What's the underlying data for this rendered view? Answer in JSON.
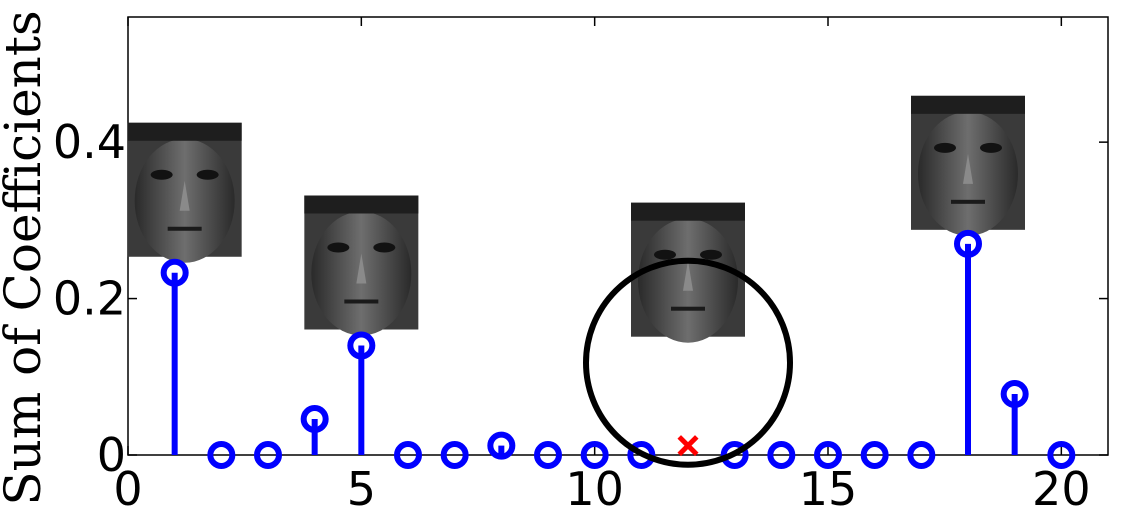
{
  "chart_data": {
    "type": "stem",
    "ylabel": "Sum of Coefficients",
    "xlim": [
      0,
      21
    ],
    "ylim": [
      0,
      0.56
    ],
    "x_ticks": [
      0,
      5,
      10,
      15,
      20
    ],
    "x_tick_labels": [
      "0",
      "5",
      "10",
      "15",
      "20"
    ],
    "y_ticks": [
      0,
      0.2,
      0.4
    ],
    "y_tick_labels": [
      "0",
      "0.2",
      "0.4"
    ],
    "grid": false,
    "series": [
      {
        "x": [
          1,
          2,
          3,
          4,
          5,
          6,
          7,
          8,
          9,
          10,
          11,
          13,
          14,
          15,
          16,
          17,
          18,
          19,
          20
        ],
        "values": [
          0.233,
          0,
          0,
          0.046,
          0.14,
          0,
          0,
          0.012,
          0,
          0,
          0,
          0,
          0,
          0,
          0,
          0,
          0.27,
          0.078,
          0
        ],
        "color": "#0000ff",
        "marker": "circle"
      }
    ],
    "excluded_point": {
      "x": 12,
      "value": 0.012,
      "marker": "x",
      "color": "#ff0000"
    },
    "highlight_circle_center": {
      "x": 12,
      "value": 0.118
    },
    "face_thumbnails_at_x": [
      1,
      5,
      12,
      18
    ]
  }
}
